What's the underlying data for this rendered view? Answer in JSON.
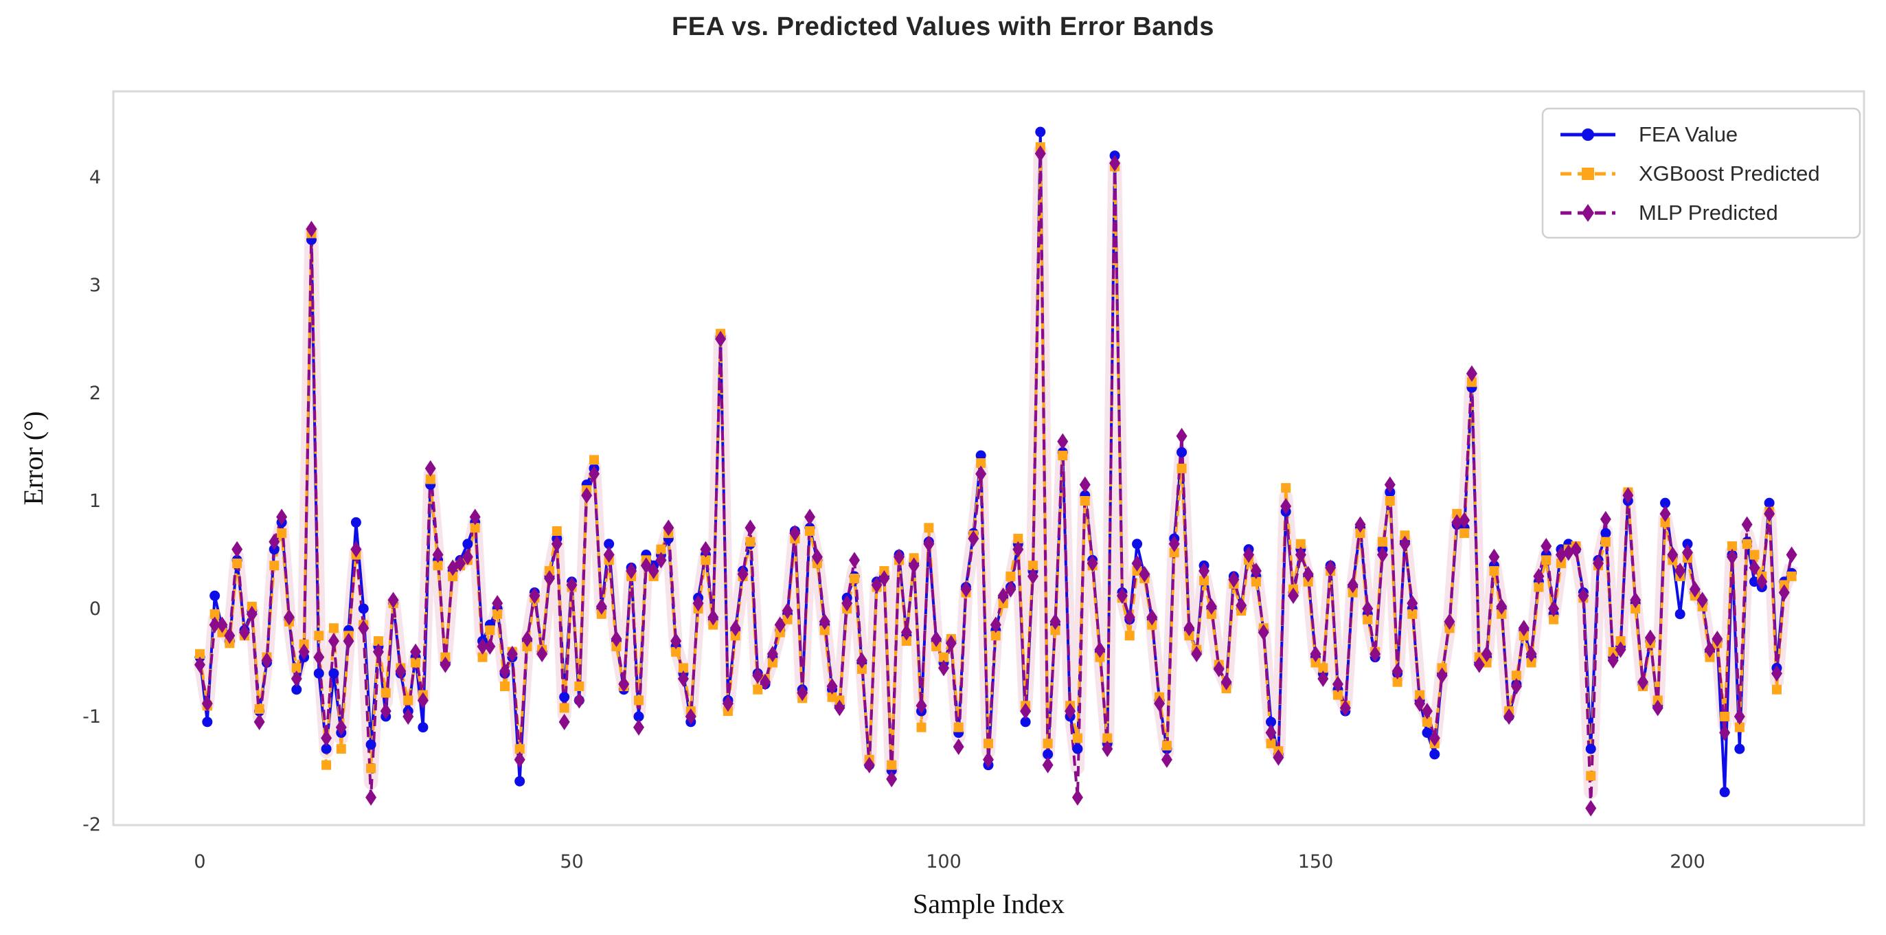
{
  "header": {
    "title": "FEA vs. Predicted Values with Error Bands"
  },
  "axes": {
    "xlabel": "Sample Index",
    "ylabel": "Error (°)",
    "xticks": [
      0,
      50,
      100,
      150,
      200
    ],
    "yticks": [
      4,
      3,
      2,
      1,
      0,
      -1,
      -2
    ]
  },
  "legend": {
    "items": [
      {
        "label": "FEA Value",
        "color": "#0d0de8",
        "marker": "circle-marker-icon",
        "dash": "solid"
      },
      {
        "label": "XGBoost Predicted",
        "color": "#ffa51a",
        "marker": "square-marker-icon",
        "dash": "dashed"
      },
      {
        "label": "MLP Predicted",
        "color": "#8a0c8a",
        "marker": "diamond-marker-icon",
        "dash": "dashed"
      }
    ]
  },
  "chart_data": {
    "type": "line",
    "title": "FEA vs. Predicted Values with Error Bands",
    "xlabel": "Sample Index",
    "ylabel": "Error (°)",
    "x_range": [
      0,
      214
    ],
    "ylim": [
      -2.05,
      4.8
    ],
    "xlim": [
      -11.6,
      225.6
    ],
    "grid": false,
    "legend_position": "upper right",
    "band_color": "rgba(219,130,165,0.22)",
    "frame_color": "#d9d9d9",
    "series": [
      {
        "name": "FEA Value",
        "color": "#0d0de8",
        "marker": "circle",
        "dash": "solid",
        "values": [
          -0.45,
          -1.05,
          0.12,
          -0.18,
          -0.3,
          0.45,
          -0.2,
          -0.02,
          -0.95,
          -0.5,
          0.55,
          0.8,
          -0.1,
          -0.75,
          -0.45,
          3.42,
          -0.6,
          -1.3,
          -0.6,
          -1.15,
          -0.2,
          0.8,
          0.0,
          -1.26,
          -0.35,
          -1.0,
          0.05,
          -0.6,
          -0.95,
          -0.45,
          -1.1,
          1.15,
          0.45,
          -0.5,
          0.35,
          0.45,
          0.6,
          0.8,
          -0.3,
          -0.15,
          0.0,
          -0.6,
          -0.45,
          -1.6,
          -0.3,
          0.15,
          -0.4,
          0.3,
          0.65,
          -0.82,
          0.25,
          -0.85,
          1.15,
          1.3,
          0.0,
          0.6,
          -0.3,
          -0.75,
          0.38,
          -1.0,
          0.5,
          0.4,
          0.5,
          0.65,
          -0.35,
          -0.6,
          -1.05,
          0.1,
          0.5,
          -0.1,
          2.52,
          -0.85,
          -0.2,
          0.35,
          0.6,
          -0.6,
          -0.7,
          -0.45,
          -0.2,
          -0.05,
          0.72,
          -0.75,
          0.75,
          0.45,
          -0.15,
          -0.75,
          -0.9,
          0.1,
          0.3,
          -0.5,
          -1.45,
          0.25,
          0.3,
          -1.5,
          0.5,
          -0.25,
          0.42,
          -0.95,
          0.62,
          -0.3,
          -0.5,
          -0.3,
          -1.15,
          0.2,
          0.7,
          1.42,
          -1.45,
          -0.2,
          0.1,
          0.2,
          0.6,
          -1.05,
          0.35,
          4.42,
          -1.35,
          -0.15,
          1.45,
          -1.0,
          -1.3,
          1.05,
          0.45,
          -0.4,
          -1.25,
          4.2,
          0.15,
          -0.1,
          0.6,
          0.3,
          -0.1,
          -0.85,
          -1.3,
          0.65,
          1.45,
          -0.2,
          -0.4,
          0.4,
          0.0,
          -0.55,
          -0.7,
          0.3,
          0.0,
          0.55,
          0.3,
          -0.2,
          -1.05,
          -1.35,
          0.9,
          0.15,
          0.55,
          0.3,
          -0.45,
          -0.6,
          0.4,
          -0.75,
          -0.95,
          0.2,
          0.75,
          -0.05,
          -0.45,
          0.55,
          1.08,
          -0.6,
          0.62,
          0.0,
          -0.85,
          -1.15,
          -1.35,
          -0.6,
          -0.15,
          0.78,
          0.75,
          2.05,
          -0.5,
          -0.45,
          0.4,
          0.0,
          -1.0,
          -0.7,
          -0.2,
          -0.45,
          0.25,
          0.5,
          -0.05,
          0.55,
          0.6,
          0.55,
          0.15,
          -1.3,
          0.45,
          0.7,
          -0.45,
          -0.35,
          1.0,
          0.05,
          -0.7,
          -0.3,
          -0.9,
          0.98,
          0.48,
          -0.05,
          0.6,
          0.15,
          0.05,
          -0.4,
          -0.3,
          -1.7,
          0.5,
          -1.3,
          0.62,
          0.25,
          0.2,
          0.98,
          -0.55,
          0.25,
          0.33
        ]
      },
      {
        "name": "XGBoost Predicted",
        "color": "#ffa51a",
        "marker": "square",
        "dash": "dashed",
        "values": [
          -0.42,
          -0.9,
          -0.05,
          -0.22,
          -0.32,
          0.42,
          -0.25,
          0.02,
          -0.93,
          -0.45,
          0.4,
          0.7,
          -0.12,
          -0.55,
          -0.33,
          3.48,
          -0.25,
          -1.45,
          -0.18,
          -1.3,
          -0.25,
          0.5,
          -0.15,
          -1.48,
          -0.3,
          -0.78,
          0.05,
          -0.55,
          -0.85,
          -0.5,
          -0.8,
          1.2,
          0.4,
          -0.45,
          0.3,
          0.4,
          0.45,
          0.75,
          -0.45,
          -0.2,
          -0.05,
          -0.72,
          -0.4,
          -1.3,
          -0.35,
          0.1,
          -0.38,
          0.35,
          0.72,
          -0.92,
          0.2,
          -0.72,
          1.1,
          1.38,
          -0.05,
          0.45,
          -0.35,
          -0.72,
          0.3,
          -0.85,
          0.45,
          0.3,
          0.55,
          0.7,
          -0.4,
          -0.55,
          -0.95,
          0.0,
          0.45,
          -0.15,
          2.55,
          -0.95,
          -0.25,
          0.3,
          0.62,
          -0.75,
          -0.65,
          -0.5,
          -0.22,
          -0.1,
          0.65,
          -0.83,
          0.72,
          0.42,
          -0.2,
          -0.82,
          -0.85,
          0.0,
          0.28,
          -0.56,
          -1.4,
          0.2,
          0.35,
          -1.45,
          0.45,
          -0.3,
          0.47,
          -1.1,
          0.75,
          -0.35,
          -0.45,
          -0.28,
          -1.1,
          0.15,
          0.68,
          1.35,
          -1.25,
          -0.25,
          0.05,
          0.3,
          0.65,
          -0.9,
          0.4,
          4.28,
          -1.25,
          -0.2,
          1.42,
          -0.9,
          -1.2,
          1.0,
          0.4,
          -0.45,
          -1.2,
          4.1,
          0.1,
          -0.25,
          0.35,
          0.28,
          -0.15,
          -0.82,
          -1.27,
          0.52,
          1.3,
          -0.25,
          -0.38,
          0.26,
          -0.05,
          -0.52,
          -0.74,
          0.23,
          -0.02,
          0.45,
          0.25,
          -0.18,
          -1.25,
          -1.32,
          1.12,
          0.18,
          0.6,
          0.25,
          -0.5,
          -0.55,
          0.35,
          -0.8,
          -0.9,
          0.15,
          0.7,
          -0.1,
          -0.4,
          0.62,
          1.0,
          -0.68,
          0.68,
          -0.05,
          -0.8,
          -1.05,
          -1.25,
          -0.55,
          -0.18,
          0.88,
          0.7,
          2.1,
          -0.45,
          -0.5,
          0.35,
          -0.05,
          -0.95,
          -0.62,
          -0.25,
          -0.5,
          0.2,
          0.45,
          -0.1,
          0.42,
          0.55,
          0.58,
          0.1,
          -1.55,
          0.4,
          0.62,
          -0.4,
          -0.3,
          1.08,
          0.0,
          -0.72,
          -0.32,
          -0.85,
          0.8,
          0.45,
          0.3,
          0.47,
          0.12,
          0.02,
          -0.45,
          -0.32,
          -1.0,
          0.58,
          -1.1,
          0.6,
          0.5,
          0.3,
          0.9,
          -0.75,
          0.22,
          0.3
        ]
      },
      {
        "name": "MLP Predicted",
        "color": "#8a0c8a",
        "marker": "diamond",
        "dash": "dashed",
        "values": [
          -0.52,
          -0.88,
          -0.15,
          -0.15,
          -0.25,
          0.55,
          -0.22,
          -0.05,
          -1.05,
          -0.48,
          0.62,
          0.85,
          -0.08,
          -0.65,
          -0.4,
          3.52,
          -0.45,
          -1.2,
          -0.3,
          -1.1,
          -0.3,
          0.55,
          -0.18,
          -1.75,
          -0.4,
          -0.95,
          0.08,
          -0.58,
          -1.0,
          -0.4,
          -0.85,
          1.3,
          0.5,
          -0.52,
          0.38,
          0.42,
          0.48,
          0.85,
          -0.35,
          -0.35,
          0.05,
          -0.58,
          -0.42,
          -1.4,
          -0.28,
          0.12,
          -0.42,
          0.28,
          0.6,
          -1.05,
          0.22,
          -0.85,
          1.05,
          1.25,
          0.02,
          0.5,
          -0.28,
          -0.7,
          0.35,
          -1.1,
          0.4,
          0.35,
          0.45,
          0.75,
          -0.3,
          -0.65,
          -1.0,
          0.05,
          0.55,
          -0.08,
          2.5,
          -0.88,
          -0.18,
          0.32,
          0.75,
          -0.62,
          -0.68,
          -0.42,
          -0.15,
          -0.02,
          0.7,
          -0.78,
          0.85,
          0.48,
          -0.12,
          -0.72,
          -0.92,
          0.05,
          0.45,
          -0.48,
          -1.45,
          0.22,
          0.28,
          -1.58,
          0.48,
          -0.22,
          0.4,
          -0.9,
          0.6,
          -0.28,
          -0.55,
          -0.32,
          -1.28,
          0.18,
          0.65,
          1.25,
          -1.4,
          -0.15,
          0.12,
          0.18,
          0.55,
          -0.95,
          0.3,
          4.22,
          -1.45,
          -0.12,
          1.55,
          -0.95,
          -1.75,
          1.15,
          0.42,
          -0.38,
          -1.3,
          4.13,
          0.12,
          -0.08,
          0.42,
          0.32,
          -0.08,
          -0.88,
          -1.4,
          0.6,
          1.6,
          -0.18,
          -0.42,
          0.35,
          0.02,
          -0.56,
          -0.68,
          0.27,
          0.03,
          0.5,
          0.35,
          -0.22,
          -1.15,
          -1.38,
          0.95,
          0.12,
          0.5,
          0.32,
          -0.42,
          -0.65,
          0.38,
          -0.7,
          -0.92,
          0.22,
          0.78,
          0.0,
          -0.42,
          0.5,
          1.15,
          -0.58,
          0.6,
          0.05,
          -0.88,
          -0.95,
          -1.2,
          -0.62,
          -0.12,
          0.8,
          0.82,
          2.18,
          -0.52,
          -0.42,
          0.48,
          0.02,
          -1.0,
          -0.72,
          -0.18,
          -0.42,
          0.3,
          0.58,
          0.0,
          0.5,
          0.52,
          0.55,
          0.12,
          -1.85,
          0.42,
          0.83,
          -0.48,
          -0.38,
          1.05,
          0.08,
          -0.68,
          -0.27,
          -0.92,
          0.88,
          0.5,
          0.35,
          0.52,
          0.18,
          0.08,
          -0.38,
          -0.28,
          -1.15,
          0.48,
          -1.0,
          0.78,
          0.38,
          0.25,
          0.88,
          -0.6,
          0.15,
          0.5
        ]
      }
    ]
  }
}
